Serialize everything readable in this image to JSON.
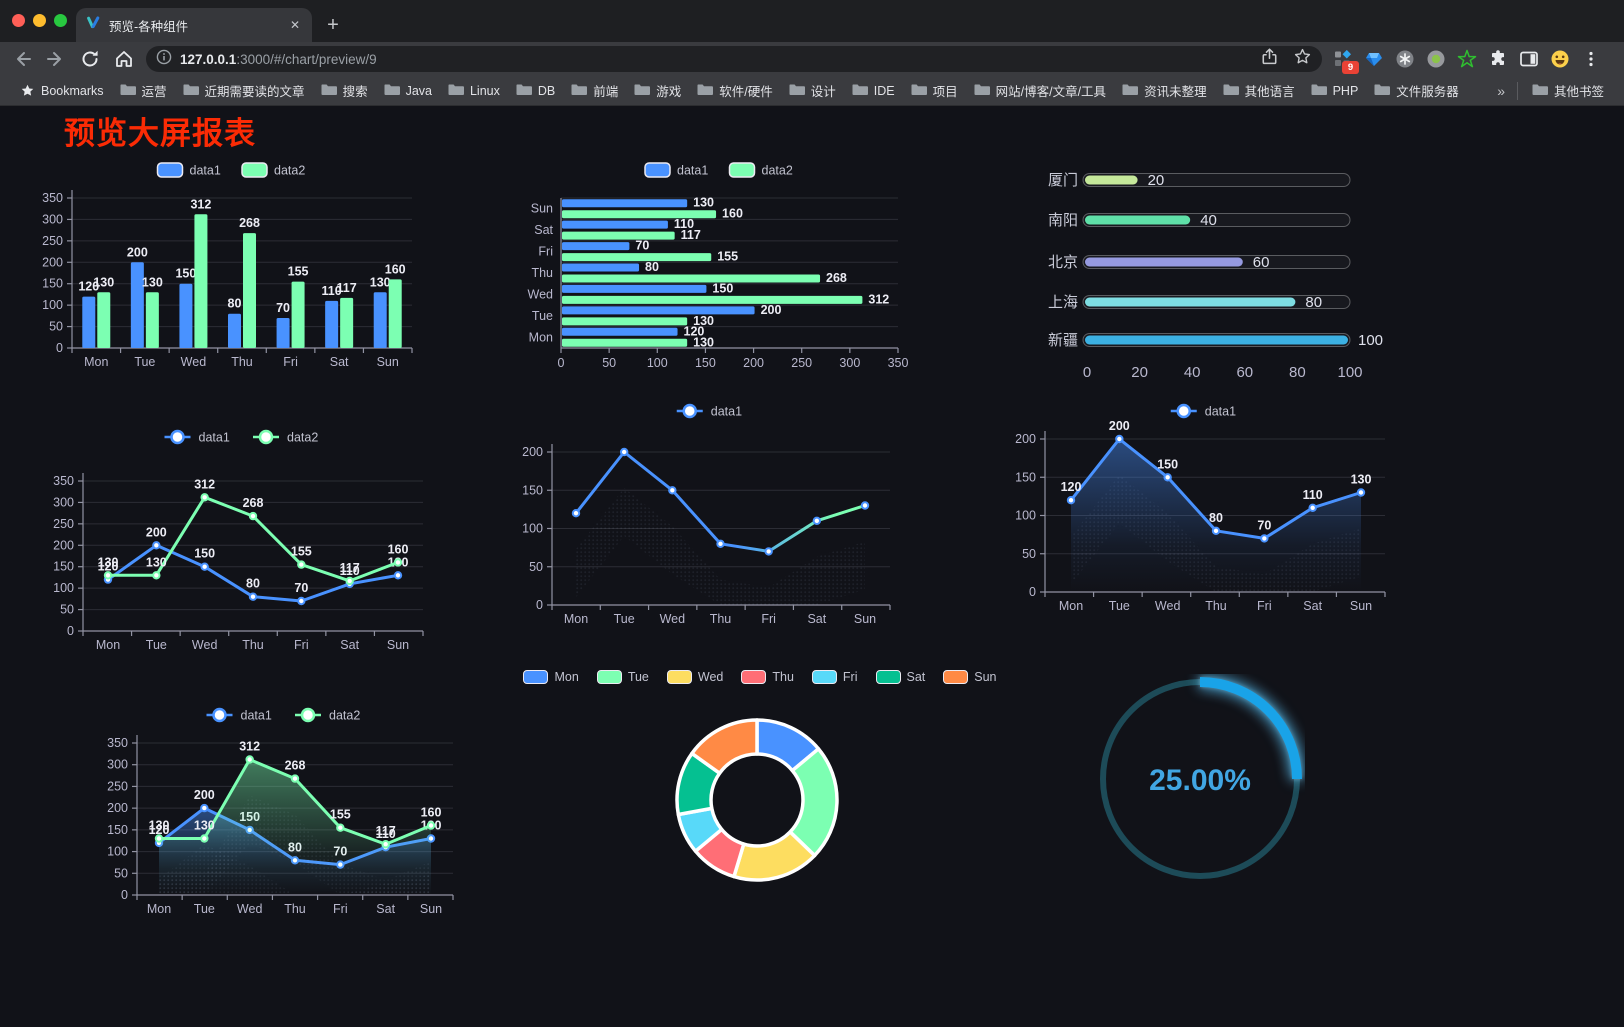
{
  "browser": {
    "traffic_lights": [
      "#ff5f57",
      "#febc2e",
      "#28c840"
    ],
    "tab": {
      "title": "预览-各种组件",
      "close": "✕",
      "new_tab": "+"
    },
    "address": {
      "host": "127.0.0.1",
      "path": ":3000/#/chart/preview/9"
    },
    "extensions_badge": "9",
    "bookmarks_bar": {
      "manager_label": "Bookmarks",
      "folders": [
        "运营",
        "近期需要读的文章",
        "搜索",
        "Java",
        "Linux",
        "DB",
        "前端",
        "游戏",
        "软件/硬件",
        "设计",
        "IDE",
        "项目",
        "网站/博客/文章/工具",
        "资讯未整理",
        "其他语言",
        "PHP",
        "文件服务器"
      ],
      "overflow": "»",
      "other": "其他书签"
    }
  },
  "page": {
    "title": "预览大屏报表"
  },
  "colors": {
    "title_red": "#fb2b05",
    "badge_red": "#e94235",
    "accent_blue": "#4992ff",
    "accent_green": "#7cffb2",
    "chart_text": "#b9b8ce"
  },
  "chart_data": [
    {
      "type": "bar",
      "title": "grouped vertical bars",
      "categories": [
        "Mon",
        "Tue",
        "Wed",
        "Thu",
        "Fri",
        "Sat",
        "Sun"
      ],
      "series": [
        {
          "name": "data1",
          "color": "#4992ff",
          "values": [
            120,
            200,
            150,
            80,
            70,
            110,
            130
          ]
        },
        {
          "name": "data2",
          "color": "#7cffb2",
          "values": [
            130,
            130,
            312,
            268,
            155,
            117,
            160
          ]
        }
      ],
      "ylim": [
        0,
        350
      ],
      "ytick_step": 50,
      "show_labels": true,
      "legend_position": "top",
      "grid": true
    },
    {
      "type": "bar-horizontal",
      "title": "grouped horizontal bars (Mon at bottom)",
      "categories": [
        "Mon",
        "Tue",
        "Wed",
        "Thu",
        "Fri",
        "Sat",
        "Sun"
      ],
      "series": [
        {
          "name": "data1",
          "color": "#4992ff",
          "values": [
            120,
            200,
            150,
            80,
            70,
            110,
            130
          ]
        },
        {
          "name": "data2",
          "color": "#7cffb2",
          "values": [
            130,
            130,
            312,
            268,
            155,
            117,
            160
          ]
        }
      ],
      "xlim": [
        0,
        350
      ],
      "xtick_step": 50,
      "show_labels": true,
      "legend_position": "top",
      "grid": true
    },
    {
      "type": "bar",
      "title": "progress pills",
      "items": [
        {
          "label": "厦门",
          "value": 20,
          "color": "#c5e89a"
        },
        {
          "label": "南阳",
          "value": 40,
          "color": "#5fe0a8"
        },
        {
          "label": "北京",
          "value": 60,
          "color": "#969ae0"
        },
        {
          "label": "上海",
          "value": 80,
          "color": "#7edde2"
        },
        {
          "label": "新疆",
          "value": 100,
          "color": "#3cb1e3"
        }
      ],
      "max": 100,
      "xticks": [
        0,
        20,
        40,
        60,
        80,
        100
      ],
      "show_labels": true
    },
    {
      "type": "line",
      "title": "two-series line",
      "categories": [
        "Mon",
        "Tue",
        "Wed",
        "Thu",
        "Fri",
        "Sat",
        "Sun"
      ],
      "series": [
        {
          "name": "data1",
          "color": "#4992ff",
          "values": [
            120,
            200,
            150,
            80,
            70,
            110,
            130
          ]
        },
        {
          "name": "data2",
          "color": "#7cffb2",
          "values": [
            130,
            130,
            312,
            268,
            155,
            117,
            160
          ]
        }
      ],
      "ylim": [
        0,
        350
      ],
      "ytick_step": 50,
      "show_labels": true,
      "shadow": false,
      "legend_position": "top",
      "grid": true
    },
    {
      "type": "line",
      "title": "gradient line with shadow decal",
      "categories": [
        "Mon",
        "Tue",
        "Wed",
        "Thu",
        "Fri",
        "Sat",
        "Sun"
      ],
      "series": [
        {
          "name": "data1",
          "color": "#4992ff",
          "gradient_to": "#7cffb2",
          "values": [
            120,
            200,
            150,
            80,
            70,
            110,
            130
          ]
        }
      ],
      "ylim": [
        0,
        200
      ],
      "ytick_step": 50,
      "show_labels": false,
      "shadow": true,
      "legend_position": "top",
      "grid": true
    },
    {
      "type": "area",
      "title": "single-series area line",
      "categories": [
        "Mon",
        "Tue",
        "Wed",
        "Thu",
        "Fri",
        "Sat",
        "Sun"
      ],
      "series": [
        {
          "name": "data1",
          "color": "#4992ff",
          "area": true,
          "values": [
            120,
            200,
            150,
            80,
            70,
            110,
            130
          ]
        }
      ],
      "ylim": [
        0,
        200
      ],
      "ytick_step": 50,
      "show_labels": true,
      "shadow": true,
      "legend_position": "top",
      "grid": true
    },
    {
      "type": "area",
      "title": "two-series area line",
      "categories": [
        "Mon",
        "Tue",
        "Wed",
        "Thu",
        "Fri",
        "Sat",
        "Sun"
      ],
      "series": [
        {
          "name": "data1",
          "color": "#4992ff",
          "area": true,
          "values": [
            120,
            200,
            150,
            80,
            70,
            110,
            130
          ]
        },
        {
          "name": "data2",
          "color": "#7cffb2",
          "area": true,
          "values": [
            130,
            130,
            312,
            268,
            155,
            117,
            160
          ]
        }
      ],
      "ylim": [
        0,
        350
      ],
      "ytick_step": 50,
      "show_labels": true,
      "shadow": true,
      "legend_position": "top",
      "grid": true
    },
    {
      "type": "pie",
      "title": "donut of weekdays",
      "categories": [
        "Mon",
        "Tue",
        "Wed",
        "Thu",
        "Fri",
        "Sat",
        "Sun"
      ],
      "values": [
        120,
        200,
        150,
        80,
        70,
        110,
        130
      ],
      "colors": [
        "#4992ff",
        "#7cffb2",
        "#fddd60",
        "#ff6e76",
        "#58d9f9",
        "#05c091",
        "#ff8a45"
      ],
      "legend_position": "top",
      "donut": true
    },
    {
      "type": "gauge",
      "title": "progress ring",
      "value": 25,
      "display": "25.00%",
      "color": "#19a3e8",
      "track_color": "#1d4b58",
      "text_color": "#41a6e3"
    }
  ]
}
